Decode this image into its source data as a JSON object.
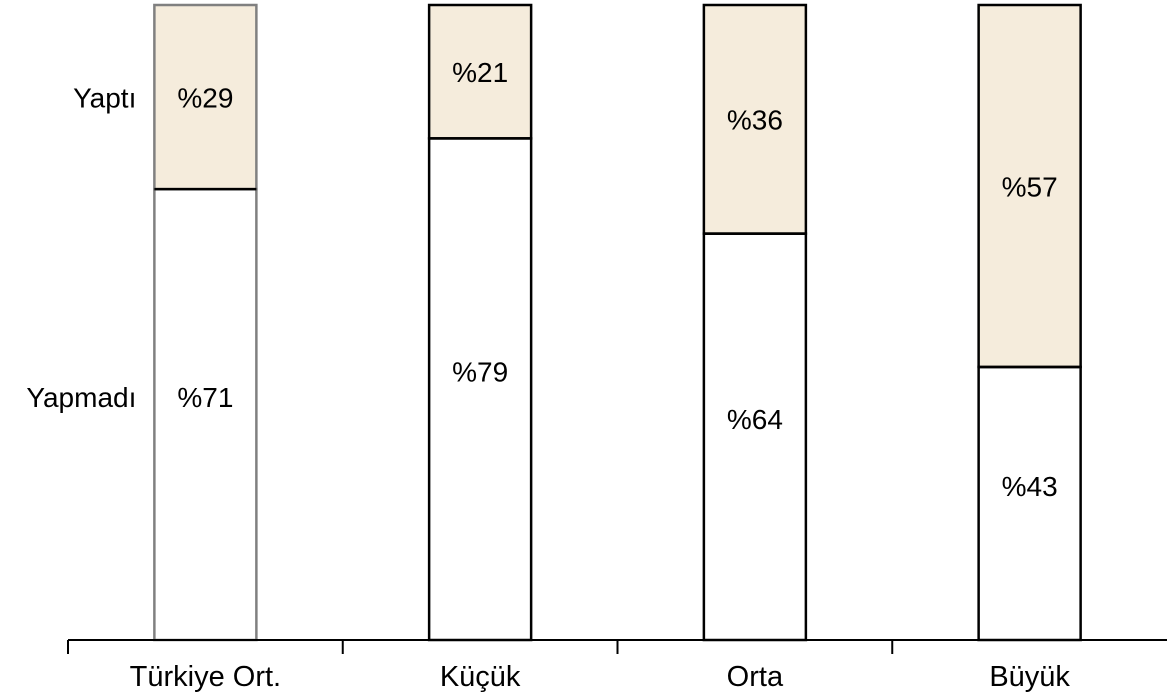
{
  "chart_data": {
    "type": "bar",
    "stacked": true,
    "normalized": true,
    "categories": [
      "Türkiye Ort.",
      "Küçük",
      "Orta",
      "Büyük"
    ],
    "series": [
      {
        "name": "Yapmadı",
        "values": [
          71,
          79,
          64,
          43
        ],
        "labels": [
          "%71",
          "%79",
          "%64",
          "%43"
        ],
        "color": "#ffffff"
      },
      {
        "name": "Yaptı",
        "values": [
          29,
          21,
          36,
          57
        ],
        "labels": [
          "%29",
          "%21",
          "%36",
          "%57"
        ],
        "color": "#f5ecdc"
      }
    ],
    "ylim": [
      0,
      100
    ],
    "title": "",
    "xlabel": "",
    "ylabel": "",
    "grid": false,
    "legend": "left",
    "bar_edge_colors": [
      "#808080",
      "#000000",
      "#000000",
      "#000000"
    ]
  }
}
